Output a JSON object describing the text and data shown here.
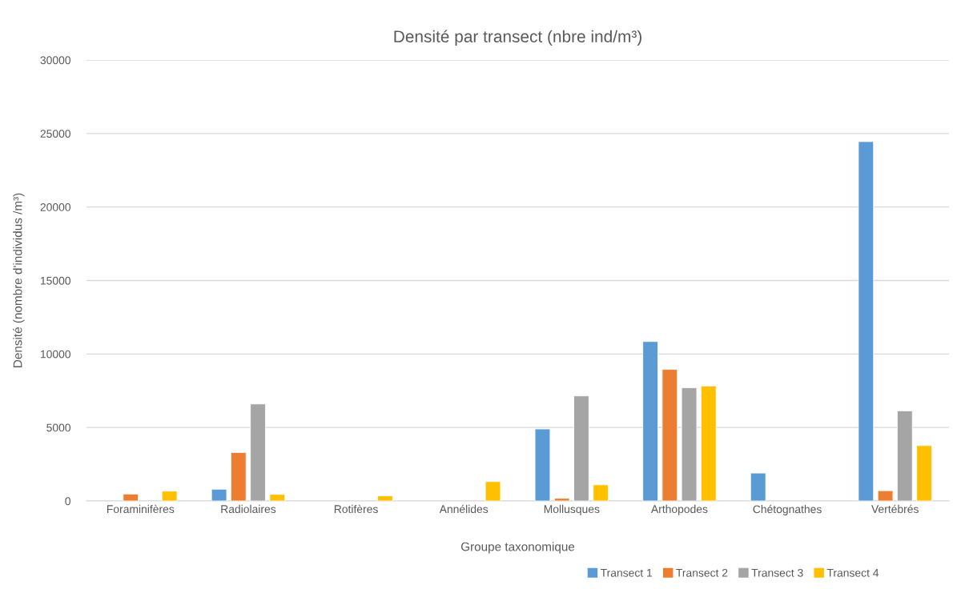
{
  "chart_data": {
    "type": "bar",
    "title": "Densité par transect (nbre ind/m³)",
    "xlabel": "Groupe taxonomique",
    "ylabel": "Densité (nombre d'individus /m³)",
    "categories": [
      "Foraminifères",
      "Radiolaires",
      "Rotifères",
      "Annélides",
      "Mollusques",
      "Arthopodes",
      "Chétognathes",
      "Vertébrés"
    ],
    "series": [
      {
        "name": "Transect 1",
        "color": "#5b9bd5",
        "values": [
          null,
          800,
          null,
          null,
          4900,
          10850,
          1900,
          24450
        ]
      },
      {
        "name": "Transect 2",
        "color": "#ed7d31",
        "values": [
          470,
          3300,
          null,
          null,
          180,
          8950,
          null,
          700
        ]
      },
      {
        "name": "Transect 3",
        "color": "#a5a5a5",
        "values": [
          null,
          6600,
          null,
          null,
          7150,
          7700,
          null,
          6130
        ]
      },
      {
        "name": "Transect 4",
        "color": "#ffc000",
        "values": [
          670,
          450,
          350,
          1320,
          1100,
          7820,
          null,
          3770
        ]
      }
    ],
    "ylim": [
      0,
      30000
    ],
    "yticks": [
      0,
      5000,
      10000,
      15000,
      20000,
      25000,
      30000
    ],
    "grid": "y",
    "legend": "bottom right"
  }
}
